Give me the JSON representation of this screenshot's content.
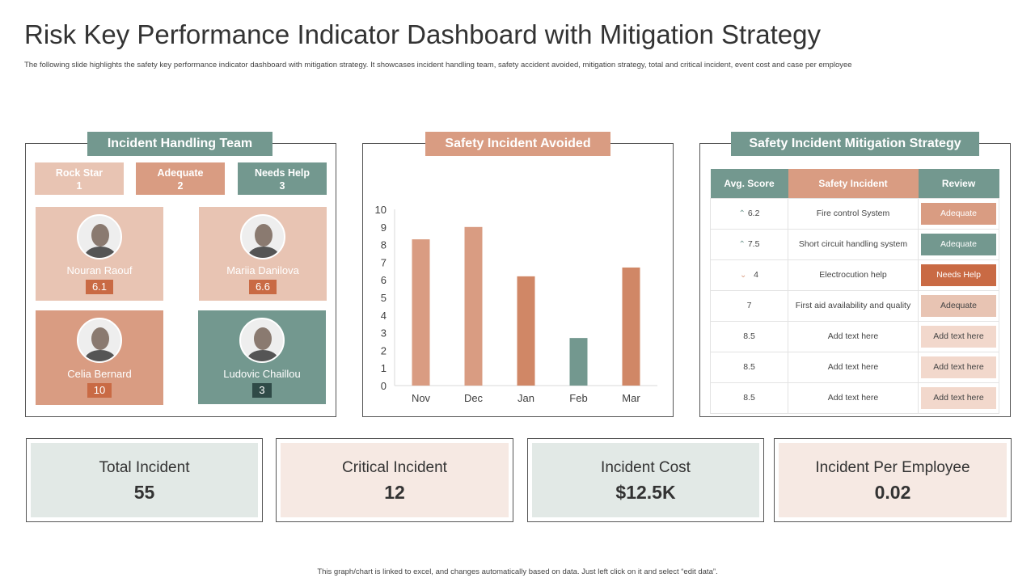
{
  "title": "Risk Key Performance Indicator Dashboard with Mitigation Strategy",
  "subtitle": "The following slide highlights the safety key performance indicator dashboard with mitigation strategy. It showcases incident handling team, safety accident avoided, mitigation strategy, total and critical incident, event cost and case per employee",
  "colors": {
    "teal": "#73988f",
    "salmon": "#d99c82",
    "light_salmon": "#e8c4b3",
    "dark_orange": "#c96a44"
  },
  "team": {
    "title": "Incident Handling Team",
    "stats": [
      {
        "label": "Rock Star",
        "value": "1"
      },
      {
        "label": "Adequate",
        "value": "2"
      },
      {
        "label": "Needs Help",
        "value": "3"
      }
    ],
    "members": [
      {
        "name": "Nouran Raouf",
        "score": "6.1"
      },
      {
        "name": "Mariia Danilova",
        "score": "6.6"
      },
      {
        "name": "Celia Bernard",
        "score": "10"
      },
      {
        "name": "Ludovic Chaillou",
        "score": "3"
      }
    ]
  },
  "chart_panel_title": "Safety Incident Avoided",
  "chart_data": {
    "type": "bar",
    "categories": [
      "Nov",
      "Dec",
      "Jan",
      "Feb",
      "Mar"
    ],
    "values": [
      8.3,
      9.0,
      6.2,
      2.7,
      6.7
    ],
    "ylim": [
      0,
      10
    ],
    "yticks": [
      "0",
      "1",
      "2",
      "3",
      "4",
      "5",
      "6",
      "7",
      "8",
      "9",
      "10"
    ],
    "colors": [
      "#d99c82",
      "#d99c82",
      "#d08766",
      "#73988f",
      "#d08766"
    ],
    "grid": false
  },
  "mitigation": {
    "title": "Safety Incident Mitigation Strategy",
    "headers": [
      "Avg. Score",
      "Safety Incident",
      "Review"
    ],
    "rows": [
      {
        "trend": "up",
        "score": "6.2",
        "incident": "Fire control System",
        "review": "Adequate"
      },
      {
        "trend": "up",
        "score": "7.5",
        "incident": "Short circuit handling system",
        "review": "Adequate"
      },
      {
        "trend": "down",
        "score": "4",
        "incident": "Electrocution help",
        "review": "Needs Help"
      },
      {
        "trend": "",
        "score": "7",
        "incident": "First aid availability and quality",
        "review": "Adequate"
      },
      {
        "trend": "",
        "score": "8.5",
        "incident": "Add text here",
        "review": "Add text here"
      },
      {
        "trend": "",
        "score": "8.5",
        "incident": "Add text here",
        "review": "Add text here"
      },
      {
        "trend": "",
        "score": "8.5",
        "incident": "Add text here",
        "review": "Add text here"
      }
    ]
  },
  "kpis": [
    {
      "label": "Total Incident",
      "value": "55"
    },
    {
      "label": "Critical Incident",
      "value": "12"
    },
    {
      "label": "Incident Cost",
      "value": "$12.5K"
    },
    {
      "label": "Incident Per Employee",
      "value": "0.02"
    }
  ],
  "footer": "This graph/chart is linked to excel, and changes automatically based on data. Just left click on it and select “edit data”."
}
